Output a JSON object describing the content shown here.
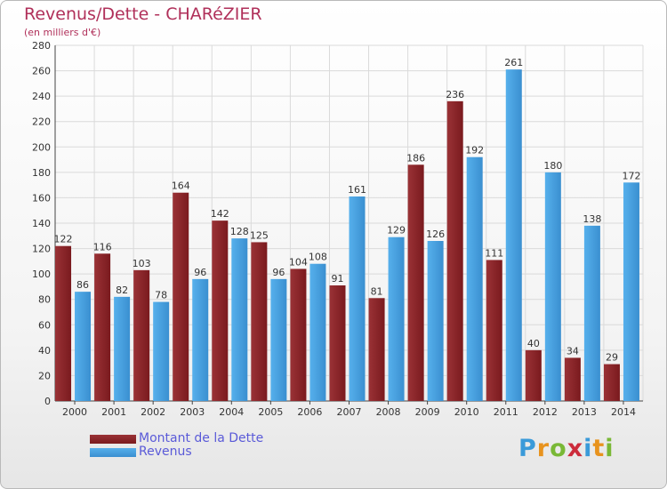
{
  "header": {
    "title": "Revenus/Dette - CHARéZIER",
    "subtitle": "(en milliers d'€)"
  },
  "legend": {
    "debt_label": "Montant de la Dette",
    "revenue_label": "Revenus"
  },
  "logo": {
    "text": "Proxiti",
    "letters": [
      "P",
      "r",
      "o",
      "x",
      "i",
      "t",
      "i"
    ],
    "letter_colors": [
      "#3a9ad9",
      "#e8931e",
      "#79b836",
      "#cc2b3b",
      "#3a9ad9",
      "#e8931e",
      "#79b836"
    ]
  },
  "colors": {
    "debt": "#7a1a1e",
    "debt_light": "#9a3236",
    "revenue": "#56b0ec",
    "revenue_dark": "#3a8fd0",
    "grid": "#dadada",
    "axis_text": "#333333"
  },
  "chart_data": {
    "type": "bar",
    "title": "Revenus/Dette - CHARéZIER",
    "subtitle": "(en milliers d'€)",
    "categories": [
      "2000",
      "2001",
      "2002",
      "2003",
      "2004",
      "2005",
      "2006",
      "2007",
      "2008",
      "2009",
      "2010",
      "2011",
      "2012",
      "2013",
      "2014"
    ],
    "series": [
      {
        "name": "Montant de la Dette",
        "values": [
          122,
          116,
          103,
          164,
          142,
          125,
          104,
          91,
          81,
          186,
          236,
          111,
          40,
          34,
          29
        ]
      },
      {
        "name": "Revenus",
        "values": [
          86,
          82,
          78,
          96,
          128,
          96,
          108,
          161,
          129,
          126,
          192,
          261,
          180,
          138,
          172
        ]
      }
    ],
    "ylim": [
      0,
      280
    ],
    "yticks": [
      0,
      20,
      40,
      60,
      80,
      100,
      120,
      140,
      160,
      180,
      200,
      220,
      240,
      260,
      280
    ],
    "grid": true,
    "legend_position": "bottom-left"
  }
}
